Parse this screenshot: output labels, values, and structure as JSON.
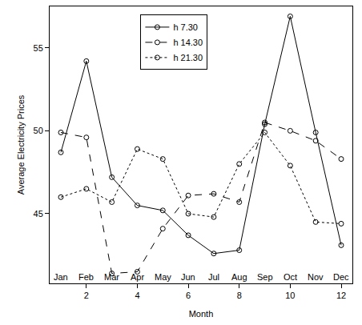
{
  "chart_data": {
    "type": "line",
    "x_label": "Month",
    "y_label": "Average Electricity Prices",
    "x": [
      1,
      2,
      3,
      4,
      5,
      6,
      7,
      8,
      9,
      10,
      11,
      12
    ],
    "series": [
      {
        "name": "h 7.30",
        "color": "#000000",
        "line_style": "solid",
        "marker": "circle-open",
        "values": [
          48.7,
          54.2,
          47.2,
          45.5,
          45.2,
          43.7,
          42.6,
          42.8,
          50.4,
          56.9,
          49.9,
          43.1
        ]
      },
      {
        "name": "h 14.30",
        "color": "#000000",
        "line_style": "dash",
        "marker": "circle-open",
        "values": [
          49.9,
          49.6,
          41.4,
          41.5,
          44.1,
          46.1,
          46.2,
          45.7,
          50.5,
          50.0,
          49.4,
          48.3
        ]
      },
      {
        "name": "h 21.30",
        "color": "#000000",
        "line_style": "dot",
        "marker": "circle-open",
        "values": [
          46.0,
          46.5,
          45.7,
          48.9,
          48.3,
          45.0,
          44.8,
          48.0,
          49.9,
          47.9,
          44.5,
          44.4
        ]
      }
    ],
    "annotations": [
      {
        "text": "Jan",
        "x": 1
      },
      {
        "text": "Feb",
        "x": 2
      },
      {
        "text": "Mar",
        "x": 3
      },
      {
        "text": "Apr",
        "x": 4
      },
      {
        "text": "May",
        "x": 5
      },
      {
        "text": "Jun",
        "x": 6
      },
      {
        "text": "Jul",
        "x": 7
      },
      {
        "text": "Aug",
        "x": 8
      },
      {
        "text": "Sep",
        "x": 9
      },
      {
        "text": "Oct",
        "x": 10
      },
      {
        "text": "Nov",
        "x": 11
      },
      {
        "text": "Dec",
        "x": 12
      }
    ],
    "xlim": [
      0.56,
      12.44
    ],
    "xticks": [
      2,
      4,
      6,
      8,
      10,
      12
    ],
    "ylim": [
      40.8,
      57.5
    ],
    "yticks": [
      45,
      50,
      55
    ],
    "grid": false,
    "legend": "top"
  }
}
